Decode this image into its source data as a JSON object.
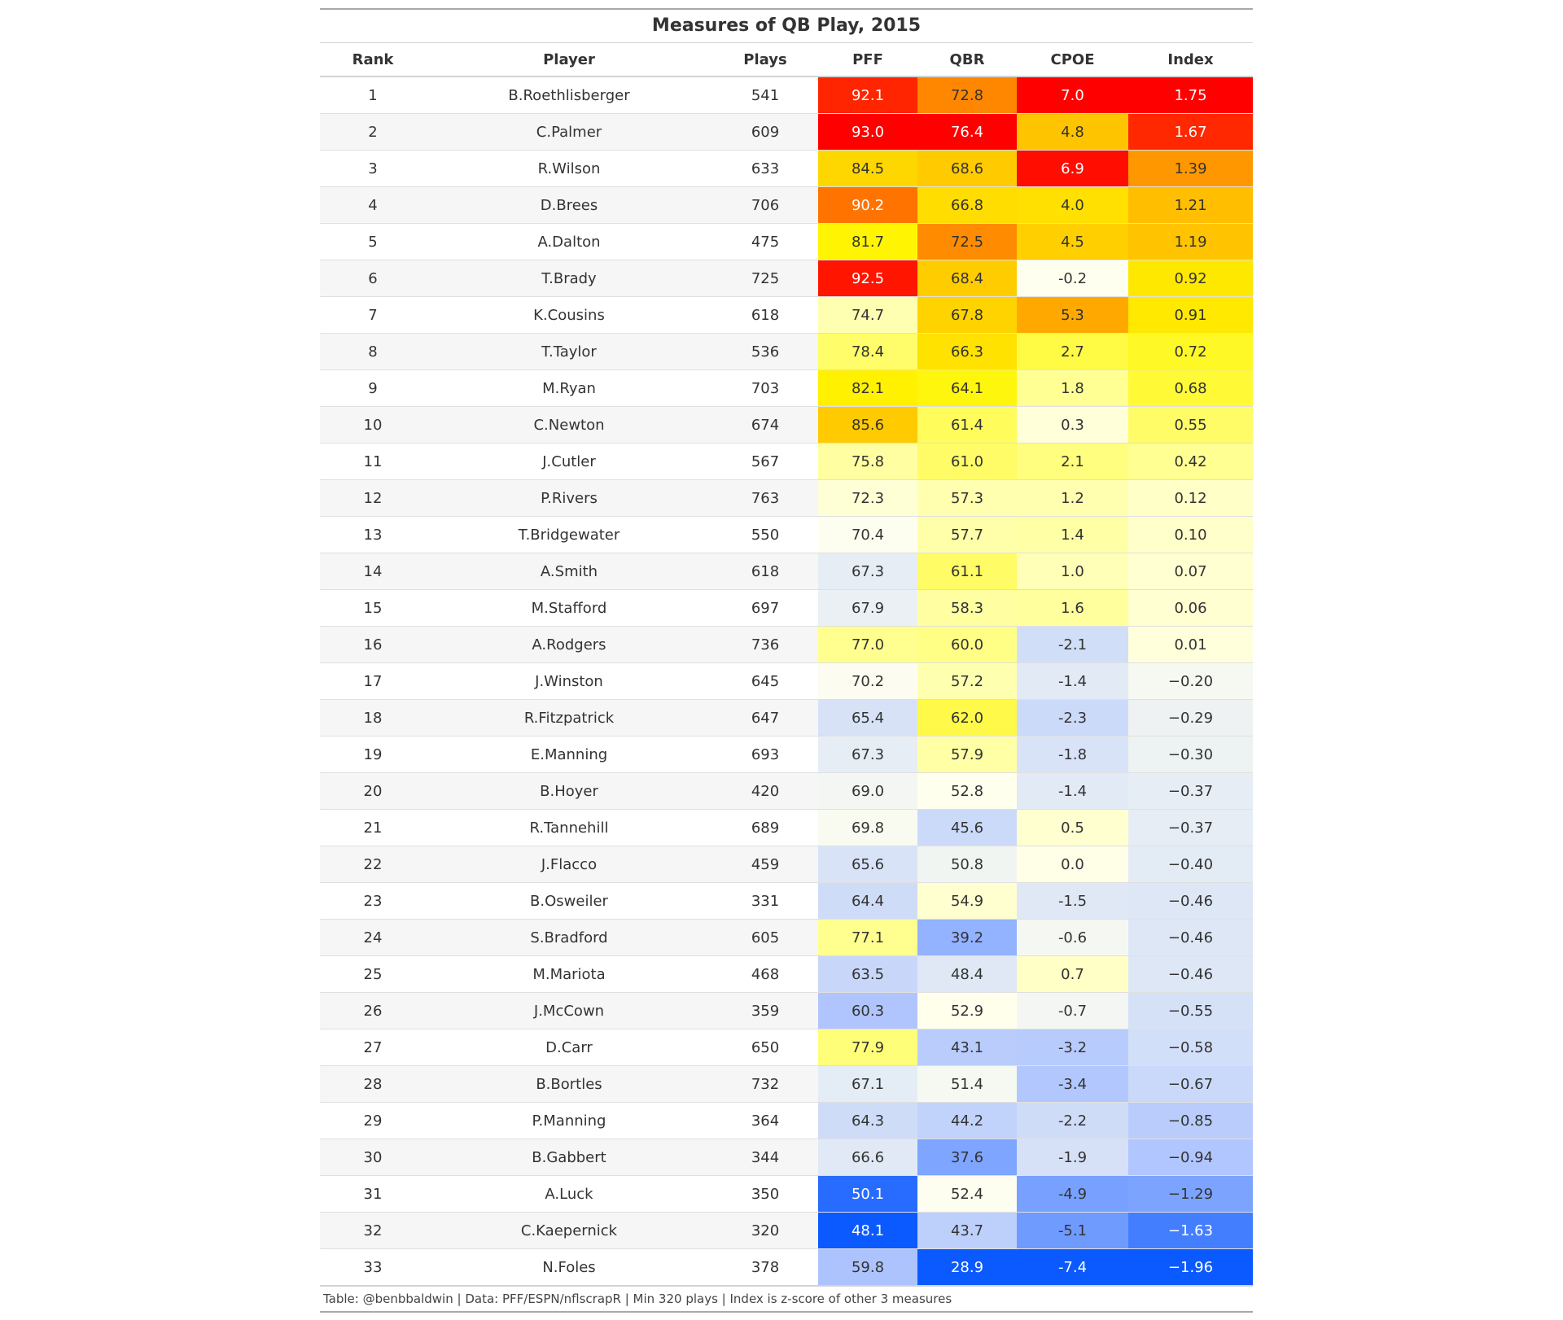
{
  "title": "Measures of QB Play, 2015",
  "columns": [
    "Rank",
    "Player",
    "Plays",
    "PFF",
    "QBR",
    "CPOE",
    "Index"
  ],
  "rows": [
    {
      "rank": "1",
      "player": "B.Roethlisberger",
      "plays": "541",
      "pff": "92.1",
      "qbr": "72.8",
      "cpoe": "7.0",
      "index": "1.75"
    },
    {
      "rank": "2",
      "player": "C.Palmer",
      "plays": "609",
      "pff": "93.0",
      "qbr": "76.4",
      "cpoe": "4.8",
      "index": "1.67"
    },
    {
      "rank": "3",
      "player": "R.Wilson",
      "plays": "633",
      "pff": "84.5",
      "qbr": "68.6",
      "cpoe": "6.9",
      "index": "1.39"
    },
    {
      "rank": "4",
      "player": "D.Brees",
      "plays": "706",
      "pff": "90.2",
      "qbr": "66.8",
      "cpoe": "4.0",
      "index": "1.21"
    },
    {
      "rank": "5",
      "player": "A.Dalton",
      "plays": "475",
      "pff": "81.7",
      "qbr": "72.5",
      "cpoe": "4.5",
      "index": "1.19"
    },
    {
      "rank": "6",
      "player": "T.Brady",
      "plays": "725",
      "pff": "92.5",
      "qbr": "68.4",
      "cpoe": "-0.2",
      "index": "0.92"
    },
    {
      "rank": "7",
      "player": "K.Cousins",
      "plays": "618",
      "pff": "74.7",
      "qbr": "67.8",
      "cpoe": "5.3",
      "index": "0.91"
    },
    {
      "rank": "8",
      "player": "T.Taylor",
      "plays": "536",
      "pff": "78.4",
      "qbr": "66.3",
      "cpoe": "2.7",
      "index": "0.72"
    },
    {
      "rank": "9",
      "player": "M.Ryan",
      "plays": "703",
      "pff": "82.1",
      "qbr": "64.1",
      "cpoe": "1.8",
      "index": "0.68"
    },
    {
      "rank": "10",
      "player": "C.Newton",
      "plays": "674",
      "pff": "85.6",
      "qbr": "61.4",
      "cpoe": "0.3",
      "index": "0.55"
    },
    {
      "rank": "11",
      "player": "J.Cutler",
      "plays": "567",
      "pff": "75.8",
      "qbr": "61.0",
      "cpoe": "2.1",
      "index": "0.42"
    },
    {
      "rank": "12",
      "player": "P.Rivers",
      "plays": "763",
      "pff": "72.3",
      "qbr": "57.3",
      "cpoe": "1.2",
      "index": "0.12"
    },
    {
      "rank": "13",
      "player": "T.Bridgewater",
      "plays": "550",
      "pff": "70.4",
      "qbr": "57.7",
      "cpoe": "1.4",
      "index": "0.10"
    },
    {
      "rank": "14",
      "player": "A.Smith",
      "plays": "618",
      "pff": "67.3",
      "qbr": "61.1",
      "cpoe": "1.0",
      "index": "0.07"
    },
    {
      "rank": "15",
      "player": "M.Stafford",
      "plays": "697",
      "pff": "67.9",
      "qbr": "58.3",
      "cpoe": "1.6",
      "index": "0.06"
    },
    {
      "rank": "16",
      "player": "A.Rodgers",
      "plays": "736",
      "pff": "77.0",
      "qbr": "60.0",
      "cpoe": "-2.1",
      "index": "0.01"
    },
    {
      "rank": "17",
      "player": "J.Winston",
      "plays": "645",
      "pff": "70.2",
      "qbr": "57.2",
      "cpoe": "-1.4",
      "index": "−0.20"
    },
    {
      "rank": "18",
      "player": "R.Fitzpatrick",
      "plays": "647",
      "pff": "65.4",
      "qbr": "62.0",
      "cpoe": "-2.3",
      "index": "−0.29"
    },
    {
      "rank": "19",
      "player": "E.Manning",
      "plays": "693",
      "pff": "67.3",
      "qbr": "57.9",
      "cpoe": "-1.8",
      "index": "−0.30"
    },
    {
      "rank": "20",
      "player": "B.Hoyer",
      "plays": "420",
      "pff": "69.0",
      "qbr": "52.8",
      "cpoe": "-1.4",
      "index": "−0.37"
    },
    {
      "rank": "21",
      "player": "R.Tannehill",
      "plays": "689",
      "pff": "69.8",
      "qbr": "45.6",
      "cpoe": "0.5",
      "index": "−0.37"
    },
    {
      "rank": "22",
      "player": "J.Flacco",
      "plays": "459",
      "pff": "65.6",
      "qbr": "50.8",
      "cpoe": "0.0",
      "index": "−0.40"
    },
    {
      "rank": "23",
      "player": "B.Osweiler",
      "plays": "331",
      "pff": "64.4",
      "qbr": "54.9",
      "cpoe": "-1.5",
      "index": "−0.46"
    },
    {
      "rank": "24",
      "player": "S.Bradford",
      "plays": "605",
      "pff": "77.1",
      "qbr": "39.2",
      "cpoe": "-0.6",
      "index": "−0.46"
    },
    {
      "rank": "25",
      "player": "M.Mariota",
      "plays": "468",
      "pff": "63.5",
      "qbr": "48.4",
      "cpoe": "0.7",
      "index": "−0.46"
    },
    {
      "rank": "26",
      "player": "J.McCown",
      "plays": "359",
      "pff": "60.3",
      "qbr": "52.9",
      "cpoe": "-0.7",
      "index": "−0.55"
    },
    {
      "rank": "27",
      "player": "D.Carr",
      "plays": "650",
      "pff": "77.9",
      "qbr": "43.1",
      "cpoe": "-3.2",
      "index": "−0.58"
    },
    {
      "rank": "28",
      "player": "B.Bortles",
      "plays": "732",
      "pff": "67.1",
      "qbr": "51.4",
      "cpoe": "-3.4",
      "index": "−0.67"
    },
    {
      "rank": "29",
      "player": "P.Manning",
      "plays": "364",
      "pff": "64.3",
      "qbr": "44.2",
      "cpoe": "-2.2",
      "index": "−0.85"
    },
    {
      "rank": "30",
      "player": "B.Gabbert",
      "plays": "344",
      "pff": "66.6",
      "qbr": "37.6",
      "cpoe": "-1.9",
      "index": "−0.94"
    },
    {
      "rank": "31",
      "player": "A.Luck",
      "plays": "350",
      "pff": "50.1",
      "qbr": "52.4",
      "cpoe": "-4.9",
      "index": "−1.29"
    },
    {
      "rank": "32",
      "player": "C.Kaepernick",
      "plays": "320",
      "pff": "48.1",
      "qbr": "43.7",
      "cpoe": "-5.1",
      "index": "−1.63"
    },
    {
      "rank": "33",
      "player": "N.Foles",
      "plays": "378",
      "pff": "59.8",
      "qbr": "28.9",
      "cpoe": "-7.4",
      "index": "−1.96"
    }
  ],
  "footer": "Table: @benbbaldwin | Data: PFF/ESPN/nflscrapR | Min 320 plays | Index is z-score of other 3 measures"
}
